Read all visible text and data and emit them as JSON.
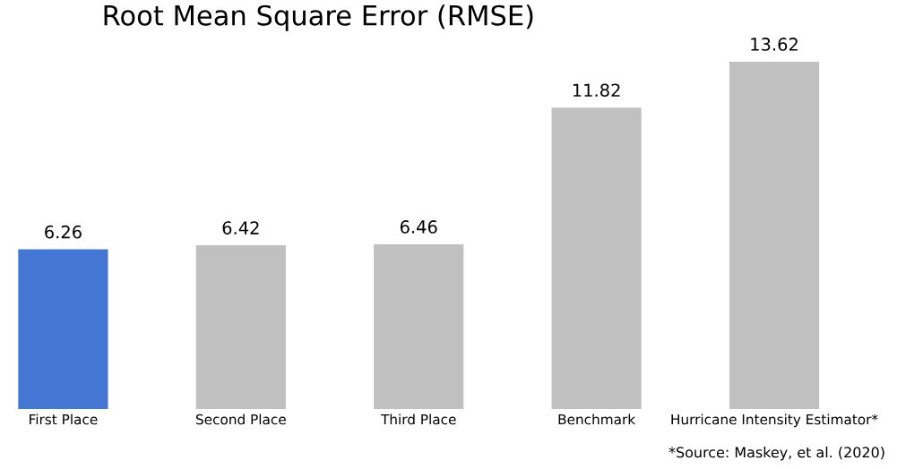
{
  "chart_data": {
    "type": "bar",
    "title": "Root Mean Square Error (RMSE)",
    "categories": [
      "First Place",
      "Second Place",
      "Third Place",
      "Benchmark",
      "Hurricane Intensity Estimator*"
    ],
    "values": [
      6.26,
      6.42,
      6.46,
      11.82,
      13.62
    ],
    "colors": [
      "#4477d4",
      "#c0c0c0",
      "#c0c0c0",
      "#c0c0c0",
      "#c0c0c0"
    ],
    "data_labels": true,
    "grid": false,
    "legend": false,
    "annotations": [
      "*Source: Maskey, et al. (2020)"
    ]
  }
}
